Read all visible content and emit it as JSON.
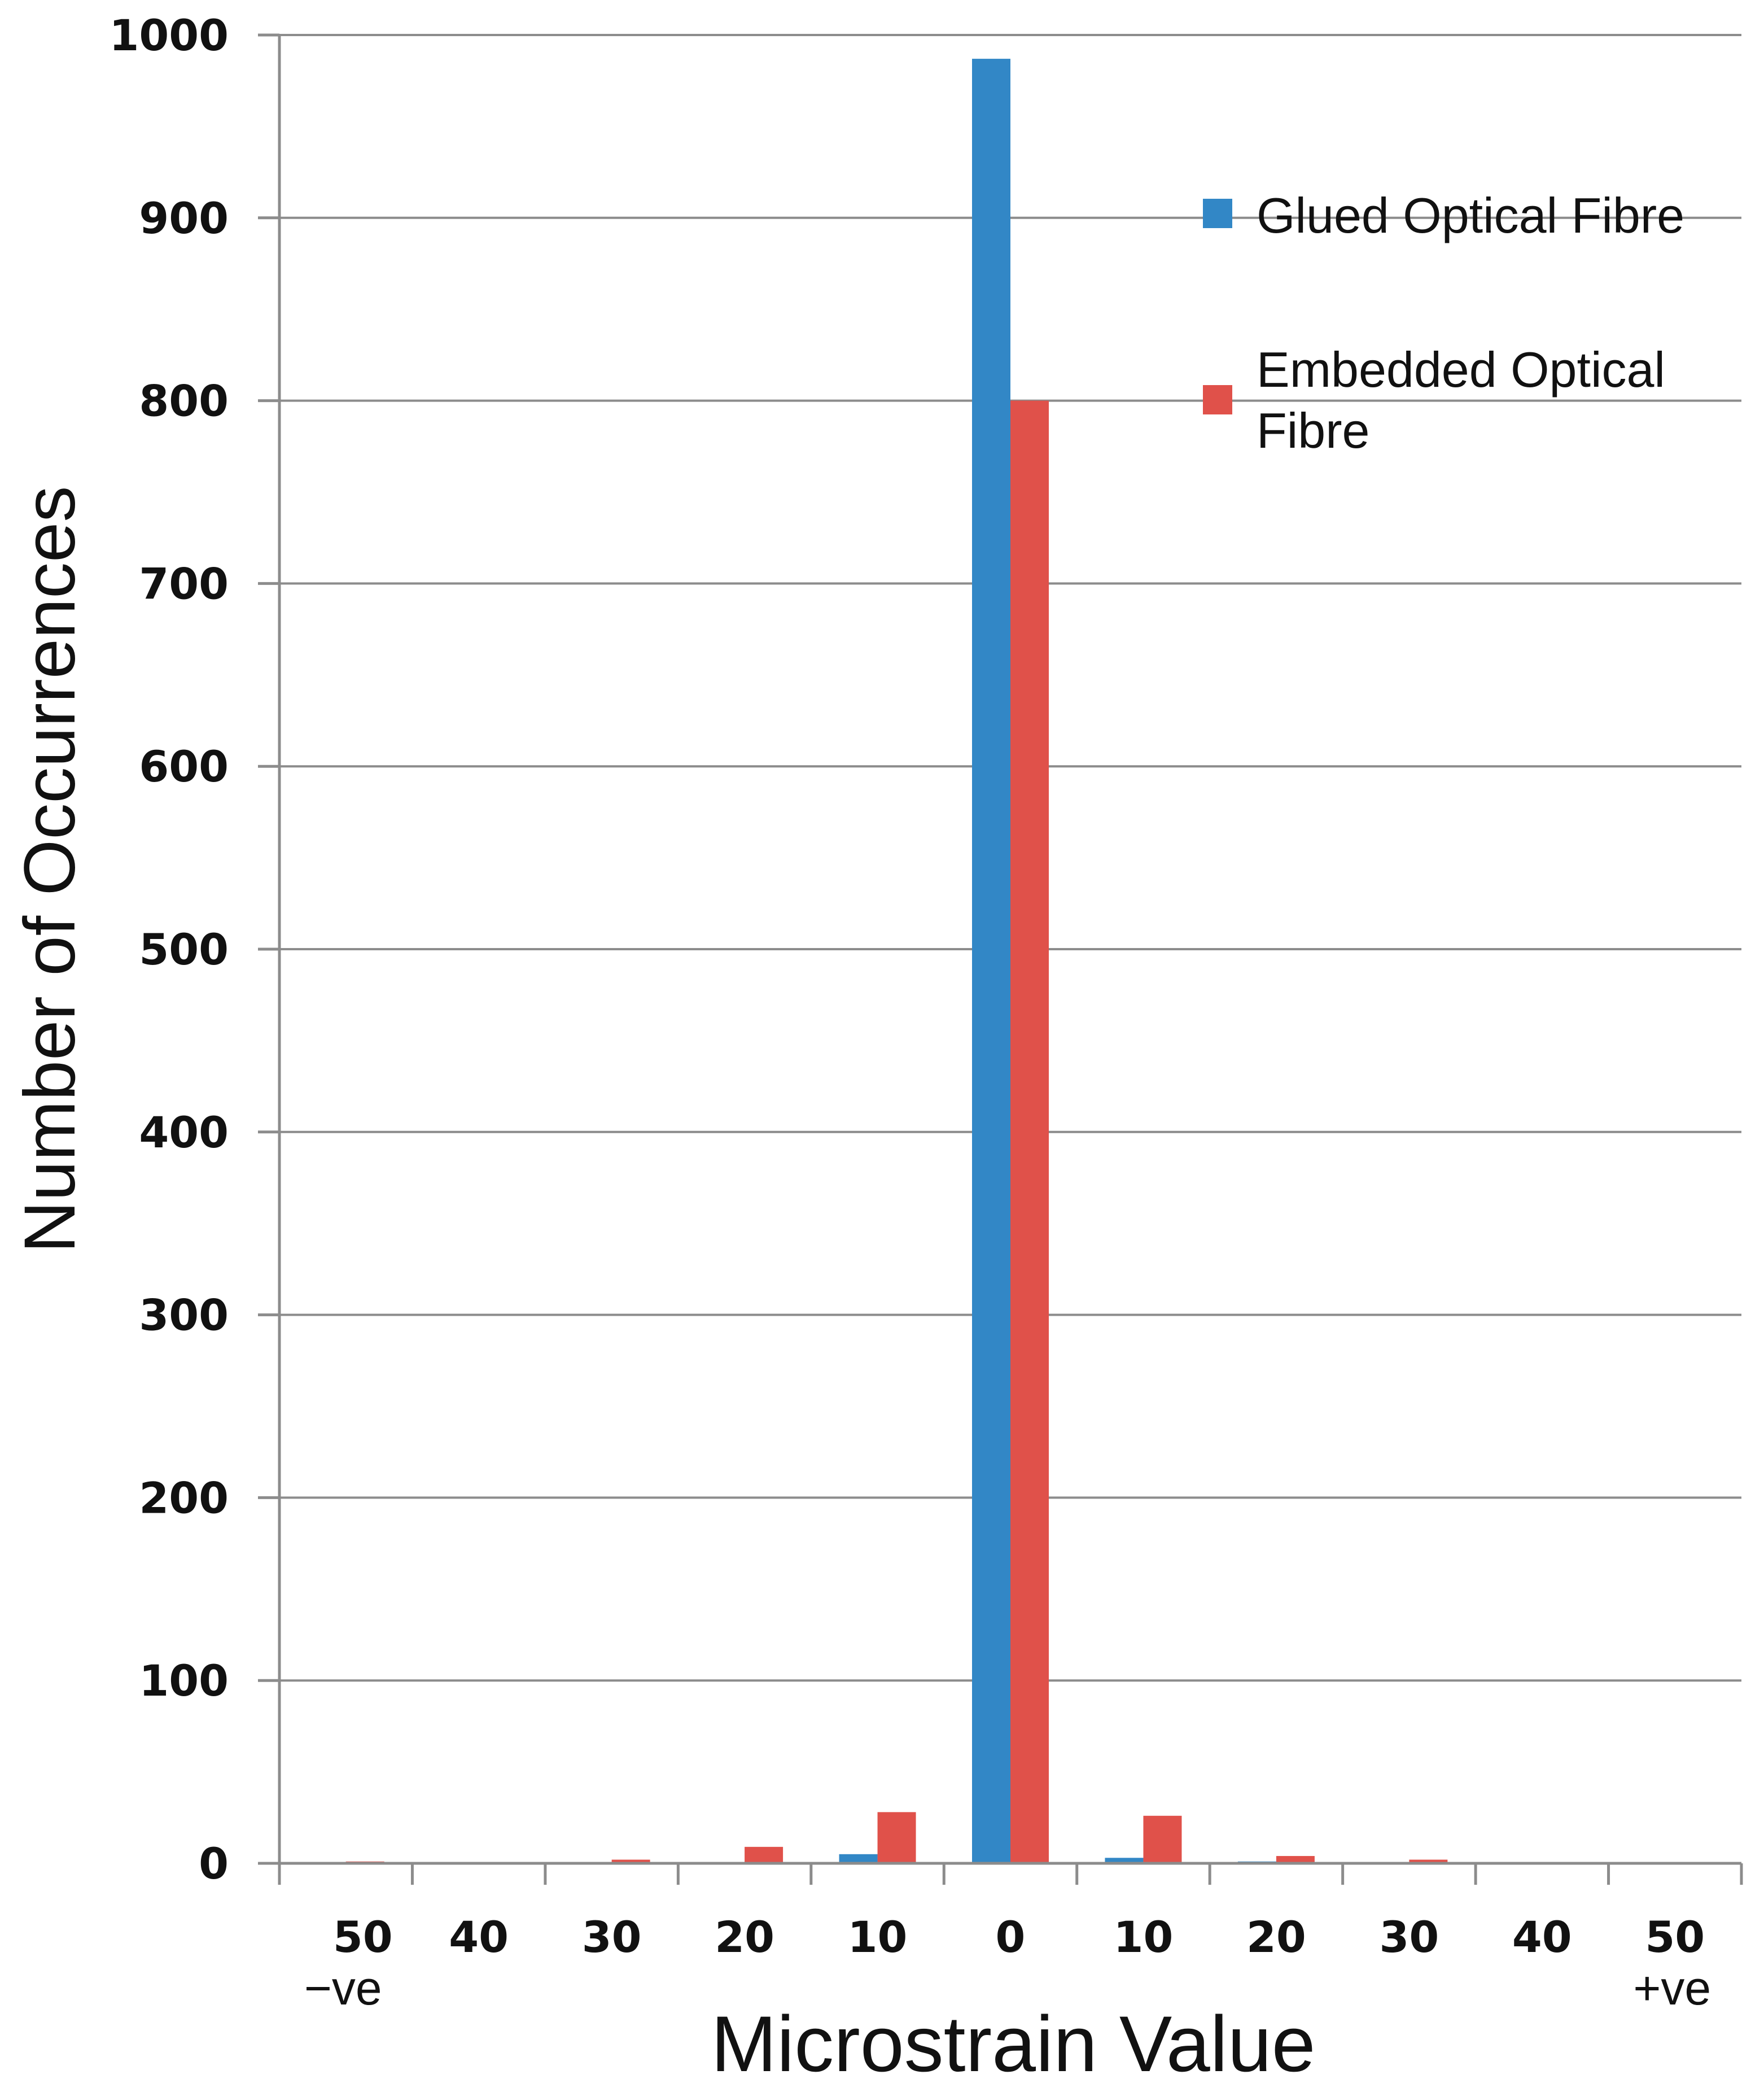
{
  "chart_data": {
    "type": "bar",
    "categories": [
      "50",
      "40",
      "30",
      "20",
      "10",
      "0",
      "10",
      "20",
      "30",
      "40",
      "50"
    ],
    "sub_labels": [
      "−ve",
      "",
      "",
      "",
      "",
      "",
      "",
      "",
      "",
      "",
      "+ve"
    ],
    "series": [
      {
        "name": "Glued Optical Fibre",
        "color": "#3287c6",
        "values": [
          0,
          0,
          0,
          0,
          5,
          987,
          3,
          1,
          0,
          0,
          0
        ]
      },
      {
        "name": "Embedded Optical Fibre",
        "color": "#e0514a",
        "values": [
          1,
          0,
          2,
          9,
          28,
          800,
          26,
          4,
          2,
          0,
          0
        ]
      }
    ],
    "title": "",
    "xlabel": "Microstrain Value",
    "ylabel": "Number of Occurrences",
    "ylim": [
      0,
      1000
    ],
    "yticks": [
      0,
      100,
      200,
      300,
      400,
      500,
      600,
      700,
      800,
      900,
      1000
    ],
    "grid": true,
    "legend_position": "top-right"
  }
}
